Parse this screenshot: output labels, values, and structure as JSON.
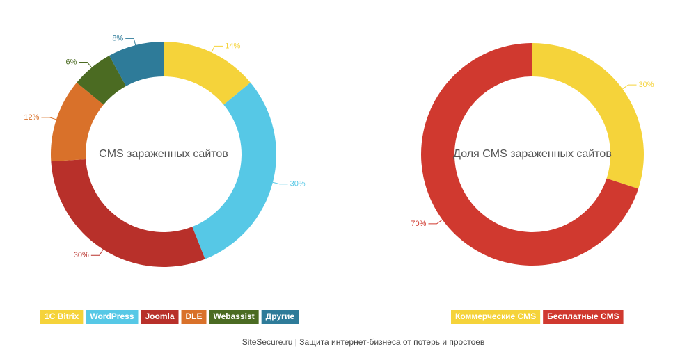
{
  "chart_data": [
    {
      "type": "pie",
      "title": "CMS зараженных сайтов",
      "categories": [
        "1С Bitrix",
        "WordPress",
        "Joomla",
        "DLE",
        "Webassist",
        "Другие"
      ],
      "values": [
        14,
        30,
        30,
        12,
        6,
        8
      ],
      "value_labels": [
        "14%",
        "30%",
        "30%",
        "12%",
        "6%",
        "8%"
      ],
      "colors": [
        "#f5d33a",
        "#56c8e6",
        "#b8302a",
        "#d9712a",
        "#4b6b22",
        "#2e7b99"
      ]
    },
    {
      "type": "pie",
      "title": "Доля CMS зараженных сайтов",
      "categories": [
        "Коммерческие CMS",
        "Бесплатные CMS"
      ],
      "values": [
        30,
        70
      ],
      "value_labels": [
        "30%",
        "70%"
      ],
      "colors": [
        "#f5d33a",
        "#d0392f"
      ]
    }
  ],
  "footer": "SiteSecure.ru | Защита интернет-бизнеса от потерь и простоев"
}
